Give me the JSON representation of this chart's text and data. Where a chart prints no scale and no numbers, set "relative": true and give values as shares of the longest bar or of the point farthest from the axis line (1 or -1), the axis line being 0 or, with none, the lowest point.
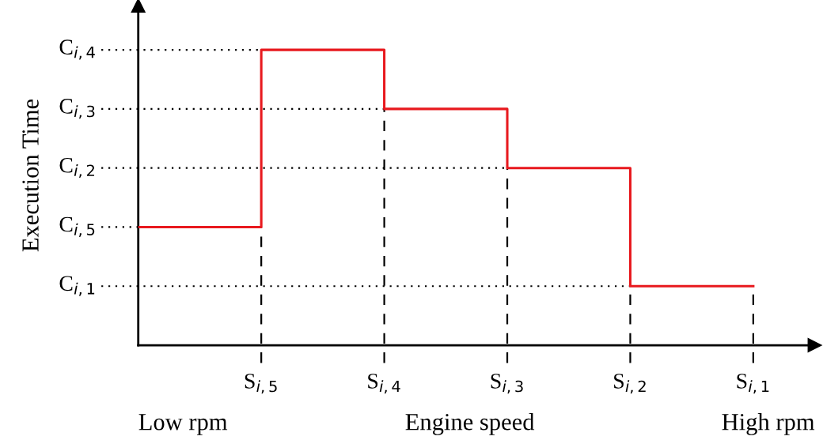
{
  "chart_data": {
    "type": "step",
    "relative": true,
    "xlabel": "Engine speed",
    "ylabel": "Execution Time",
    "categories": [
      null,
      "S$_{i,5}$",
      "S$_{i,4}$",
      "S$_{i,3}$",
      "S$_{i,2}$",
      "S$_{i,1}$"
    ],
    "values": [
      0.4,
      1.0,
      0.8,
      0.6,
      0.2,
      0.2
    ],
    "color": "#e8191e",
    "ref_lines": [
      {
        "axis": "y",
        "value": 1.0,
        "label": "C$_{i,4}$",
        "line_style": "dotted",
        "color": "#000000"
      },
      {
        "axis": "y",
        "value": 0.8,
        "label": "C$_{i,3}$",
        "line_style": "dotted",
        "color": "#000000"
      },
      {
        "axis": "y",
        "value": 0.6,
        "label": "C$_{i,2}$",
        "line_style": "dotted",
        "color": "#000000"
      },
      {
        "axis": "y",
        "value": 0.4,
        "label": "C$_{i,5}$",
        "line_style": "dotted",
        "color": "#000000"
      },
      {
        "axis": "y",
        "value": 0.2,
        "label": "C$_{i,1}$",
        "line_style": "dotted",
        "color": "#000000"
      },
      {
        "axis": "x",
        "value": "S$_{i,5}$",
        "line_style": "dashed",
        "color": "#000000"
      },
      {
        "axis": "x",
        "value": "S$_{i,4}$",
        "line_style": "dashed",
        "color": "#000000"
      },
      {
        "axis": "x",
        "value": "S$_{i,3}$",
        "line_style": "dashed",
        "color": "#000000"
      },
      {
        "axis": "x",
        "value": "S$_{i,2}$",
        "line_style": "dashed",
        "color": "#000000"
      },
      {
        "axis": "x",
        "value": "S$_{i,1}$",
        "line_style": "dashed",
        "color": "#000000"
      }
    ],
    "annotations": [
      "Low rpm",
      "High rpm"
    ]
  }
}
